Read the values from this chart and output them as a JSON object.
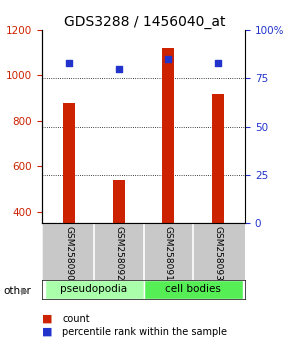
{
  "title": "GDS3288 / 1456040_at",
  "samples": [
    "GSM258090",
    "GSM258092",
    "GSM258091",
    "GSM258093"
  ],
  "groups": [
    "pseudopodia",
    "pseudopodia",
    "cell bodies",
    "cell bodies"
  ],
  "count_values": [
    880,
    540,
    1120,
    920
  ],
  "percentile_values": [
    83,
    80,
    85,
    83
  ],
  "ylim_left": [
    350,
    1200
  ],
  "ylim_right": [
    0,
    100
  ],
  "yticks_left": [
    400,
    600,
    800,
    1000,
    1200
  ],
  "yticks_right": [
    0,
    25,
    50,
    75,
    100
  ],
  "bar_color": "#cc2200",
  "dot_color": "#2233cc",
  "bar_width": 0.25,
  "group_colors": {
    "pseudopodia": "#aaffaa",
    "cell bodies": "#55ee55"
  },
  "other_label": "other",
  "legend_count": "count",
  "legend_percentile": "percentile rank within the sample",
  "title_fontsize": 10,
  "axis_label_color_left": "#cc2200",
  "axis_label_color_right": "#2233cc",
  "tick_label_size": 7.5,
  "sample_label_size": 6.5
}
